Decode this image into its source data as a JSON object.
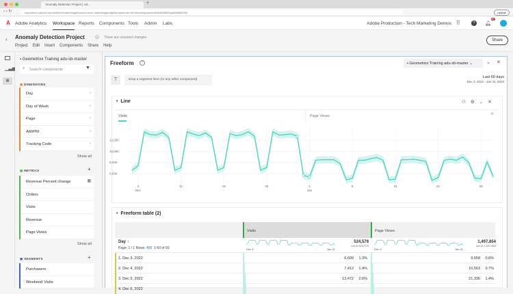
{
  "browser": {
    "tab_title": "Anomaly Detection Project | Ad...",
    "url": "experience.adobe.com/#/@techmarketingdemos/so:tech-marketing/analytics/spa/index.html#/workspace/edit/63d9f9543aa49f8680353",
    "update_label": "Update"
  },
  "app": {
    "name": "Adobe Analytics",
    "nav": [
      "Workspace",
      "Reports",
      "Components",
      "Tools",
      "Admin",
      "Labs"
    ],
    "org": "Adobe Production - Tech Marketing Demos",
    "notif_count": "9+"
  },
  "project": {
    "title": "Anomaly Detection Project",
    "unsaved": "There are unsaved changes",
    "menu": [
      "Project",
      "Edit",
      "Insert",
      "Components",
      "Share",
      "Help"
    ],
    "share": "Share"
  },
  "panel": {
    "report_suite": "Geometrixx Training adu-sb-master",
    "search_placeholder": "Search components",
    "dimensions": {
      "title": "DIMENSIONS",
      "items": [
        "Day",
        "Day of Week",
        "Page",
        "AM/PM",
        "Tracking Code"
      ],
      "show_all": "Show all"
    },
    "metrics": {
      "title": "METRICS",
      "items": [
        "Revenue Percent change",
        "Orders",
        "Visits",
        "Revenue",
        "Page Views"
      ],
      "show_all": "Show all"
    },
    "segments": {
      "title": "SEGMENTS",
      "items": [
        "Purchasers",
        "Weekend Visits"
      ]
    },
    "colors": {
      "dimensions": "#e0883a",
      "metrics": "#4cb84c",
      "segments": "#3b63c4"
    }
  },
  "freeform": {
    "title": "Freeform",
    "suite": "Geometrixx Training adu-sb-master",
    "drop_zone": "Drop a segment here (or any other component)",
    "range": "Last 60 days",
    "range_dates": "Dec 3, 2022 - Jan 31, 2023"
  },
  "line_viz": {
    "title": "Line",
    "legend": [
      "Visits",
      "Page Views"
    ]
  },
  "chart_data": {
    "type": "line",
    "xlabel": "",
    "ylabel": "",
    "ylim": [
      4000,
      14500
    ],
    "yticks": [
      "6,000",
      "8,000",
      "10,000",
      "12,000"
    ],
    "xticks": [
      {
        "label": "4",
        "sub": "Dec",
        "day": 1
      },
      {
        "label": "11",
        "day": 8
      },
      {
        "label": "18",
        "day": 15
      },
      {
        "label": "25",
        "day": 22
      },
      {
        "label": "1",
        "sub": "Jan",
        "day": 29
      },
      {
        "label": "8",
        "day": 36
      },
      {
        "label": "15",
        "day": 43
      },
      {
        "label": "22",
        "day": 50
      },
      {
        "label": "29",
        "day": 57
      }
    ],
    "grid": true,
    "color": "#4fcfbf",
    "band_color": "#c9f1ec",
    "x_start": "Dec 3, 2022",
    "x_end": "Jan 31, 2023",
    "series": [
      {
        "name": "Visits",
        "values": [
          6609,
          7412,
          13472,
          13000,
          12900,
          13400,
          12500,
          6600,
          7100,
          13500,
          13100,
          12800,
          13300,
          12500,
          6600,
          7100,
          13200,
          12800,
          13000,
          13500,
          12700,
          6600,
          7100,
          13500,
          12900,
          13000,
          13100,
          12700,
          5700,
          5400,
          8400,
          8500,
          8500,
          8500,
          7800,
          4900,
          5200,
          8400,
          8400,
          8700,
          8900,
          8400,
          4900,
          5000,
          8500,
          8500,
          8600,
          8400,
          8200,
          4800,
          5300,
          8400,
          8600,
          8400,
          9000,
          8000,
          5200,
          5100,
          8100,
          5500
        ]
      }
    ]
  },
  "table": {
    "title": "Freeform table (2)",
    "dim": "Day",
    "pagination": "Page: 1 / 1 Rows:",
    "rows_count": "400",
    "range": "1-60 of 60",
    "cols": [
      {
        "name": "Visits",
        "total": "524,579",
        "out_of": "out of 524,579",
        "spark_start": "Dec 3",
        "spark_end": "Jan 31"
      },
      {
        "name": "Page Views",
        "total": "1,497,854",
        "out_of": "out of 1,497,854",
        "spark_start": "Dec 3",
        "spark_end": "Jan 31"
      }
    ],
    "rows": [
      {
        "label": "1.  Dec 3, 2022",
        "v": "6,609",
        "vp": "1.3%",
        "pv": "9,558",
        "pvp": "0.6%"
      },
      {
        "label": "2.  Dec 4, 2022",
        "v": "7,412",
        "vp": "1.4%",
        "pv": "10,563",
        "pvp": "0.7%"
      },
      {
        "label": "3.  Dec 5, 2022",
        "v": "13,472",
        "vp": "2.6%",
        "pv": "21,336",
        "pvp": "1.4%"
      },
      {
        "label": "4.  Dec 6, 2022",
        "v": "",
        "vp": "",
        "pv": "",
        "pvp": ""
      }
    ]
  }
}
